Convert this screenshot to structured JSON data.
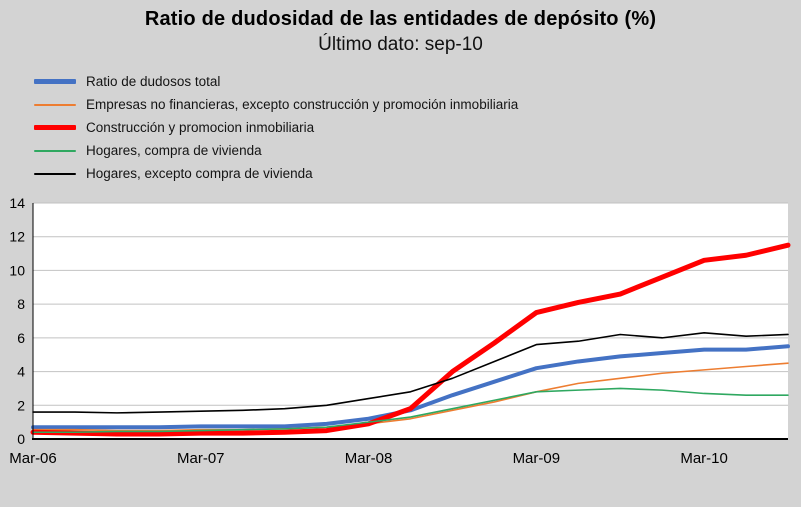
{
  "title": "Ratio de dudosidad de las entidades de depósito (%)",
  "subtitle": "Último dato: sep-10",
  "colors": {
    "background": "#d3d3d3",
    "plot_bg": "#ffffff",
    "grid": "#c2c2c2",
    "axis": "#000000",
    "text": "#000000"
  },
  "chart_data": {
    "type": "line",
    "title": "Ratio de dudosidad de las entidades de depósito (%)",
    "subtitle": "Último dato: sep-10",
    "x": [
      "Mar-06",
      "Jun-06",
      "Sep-06",
      "Dec-06",
      "Mar-07",
      "Jun-07",
      "Sep-07",
      "Dec-07",
      "Mar-08",
      "Jun-08",
      "Sep-08",
      "Dec-08",
      "Mar-09",
      "Jun-09",
      "Sep-09",
      "Dec-09",
      "Mar-10",
      "Jun-10",
      "Sep-10"
    ],
    "x_tick_labels": [
      "Mar-06",
      "Mar-07",
      "Mar-08",
      "Mar-09",
      "Mar-10"
    ],
    "x_tick_indices": [
      0,
      4,
      8,
      12,
      16
    ],
    "ylim": [
      0,
      14
    ],
    "y_ticks": [
      0,
      2,
      4,
      6,
      8,
      10,
      12,
      14
    ],
    "grid": true,
    "legend_position": "top-left",
    "series": [
      {
        "name": "Ratio de dudosos total",
        "color": "#4472c4",
        "width": 4,
        "values": [
          0.7,
          0.7,
          0.7,
          0.7,
          0.75,
          0.75,
          0.75,
          0.9,
          1.2,
          1.7,
          2.6,
          3.4,
          4.2,
          4.6,
          4.9,
          5.1,
          5.3,
          5.3,
          5.5
        ]
      },
      {
        "name": "Empresas no financieras, excepto construcción y promoción inmobiliaria",
        "color": "#ed7d31",
        "width": 1.6,
        "values": [
          0.55,
          0.55,
          0.5,
          0.5,
          0.55,
          0.55,
          0.6,
          0.7,
          0.9,
          1.2,
          1.7,
          2.2,
          2.8,
          3.3,
          3.6,
          3.9,
          4.1,
          4.3,
          4.5
        ]
      },
      {
        "name": "Construcción y promocion inmobiliaria",
        "color": "#ff0000",
        "width": 5,
        "values": [
          0.4,
          0.35,
          0.3,
          0.3,
          0.35,
          0.35,
          0.4,
          0.5,
          0.9,
          1.8,
          4.0,
          5.7,
          7.5,
          8.1,
          8.6,
          9.6,
          10.6,
          10.9,
          11.5
        ]
      },
      {
        "name": "Hogares, compra de vivienda",
        "color": "#2fa860",
        "width": 1.6,
        "values": [
          0.4,
          0.4,
          0.45,
          0.45,
          0.5,
          0.55,
          0.6,
          0.7,
          1.0,
          1.3,
          1.8,
          2.3,
          2.8,
          2.9,
          3.0,
          2.9,
          2.7,
          2.6,
          2.6
        ]
      },
      {
        "name": "Hogares, excepto compra de vivienda",
        "color": "#000000",
        "width": 1.6,
        "values": [
          1.6,
          1.6,
          1.55,
          1.6,
          1.65,
          1.7,
          1.8,
          2.0,
          2.4,
          2.8,
          3.6,
          4.6,
          5.6,
          5.8,
          6.2,
          6.0,
          6.3,
          6.1,
          6.2
        ]
      }
    ]
  }
}
